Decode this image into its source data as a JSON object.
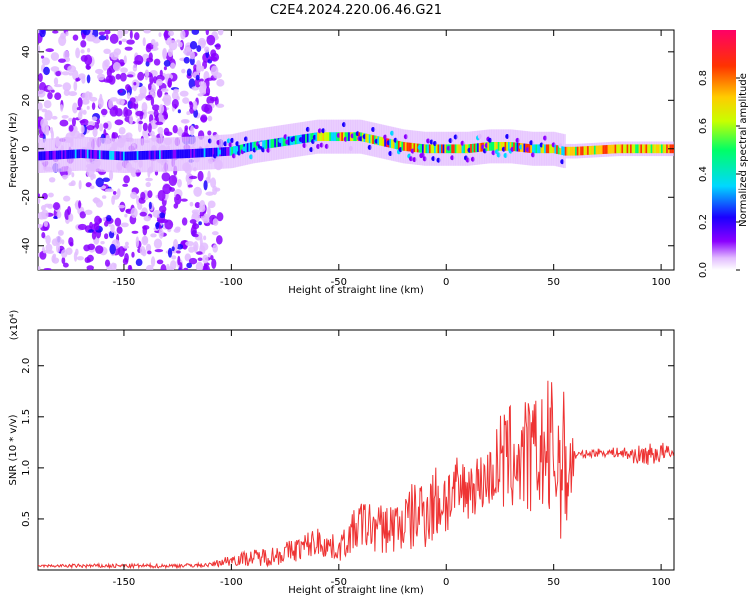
{
  "title": "C2E4.2024.220.06.46.G21",
  "chart_data": [
    {
      "type": "heatmap",
      "xlabel": "Height of straight line (km)",
      "ylabel": "Frequency (Hz)",
      "xlim": [
        -190,
        106
      ],
      "ylim": [
        -50,
        49
      ],
      "xticks": [
        -150,
        -100,
        -50,
        0,
        50,
        100
      ],
      "yticks": [
        -40,
        -20,
        0,
        20,
        40
      ],
      "colorbar": {
        "label": "Normalized spectral amplitude",
        "range": [
          0,
          1
        ],
        "ticks": [
          "0.0",
          "0.2",
          "0.4",
          "0.6",
          "0.8"
        ],
        "colors": [
          "#ffffff",
          "#e2bcff",
          "#8a00ff",
          "#1a00ff",
          "#00d8ff",
          "#00ff66",
          "#c8ff00",
          "#ffcc00",
          "#ff3300",
          "#ff0066"
        ]
      },
      "ridge": {
        "x": [
          -190,
          -170,
          -150,
          -120,
          -100,
          -90,
          -75,
          -60,
          -50,
          -40,
          -30,
          -20,
          -10,
          0,
          10,
          20,
          30,
          40,
          50,
          55,
          60,
          80,
          100,
          106
        ],
        "y": [
          -3,
          -2,
          -3,
          -2,
          -1,
          1,
          3,
          5,
          5,
          5,
          3,
          1,
          0,
          0,
          0,
          1,
          1,
          0,
          0,
          -1,
          -1,
          0,
          0,
          0
        ]
      },
      "scatter_region_x": [
        -190,
        -105
      ]
    },
    {
      "type": "line",
      "xlabel": "Height of straight line (km)",
      "ylabel": "SNR (10 * v/v)",
      "yscale_label": "(x10⁴)",
      "xlim": [
        -190,
        106
      ],
      "ylim": [
        0,
        2.35
      ],
      "xticks": [
        -150,
        -100,
        -50,
        0,
        50,
        100
      ],
      "yticks": [
        "0.5",
        "1.0",
        "1.5",
        "2.0"
      ],
      "line_color": "#ee3333",
      "x": [
        -190,
        -170,
        -150,
        -130,
        -110,
        -100,
        -90,
        -80,
        -70,
        -60,
        -50,
        -40,
        -30,
        -20,
        -10,
        0,
        10,
        20,
        25,
        30,
        40,
        45,
        50,
        55,
        58,
        60,
        70,
        80,
        90,
        100,
        106
      ],
      "y": [
        0.04,
        0.04,
        0.04,
        0.04,
        0.05,
        0.1,
        0.12,
        0.14,
        0.2,
        0.28,
        0.2,
        0.45,
        0.4,
        0.45,
        0.6,
        0.7,
        0.8,
        0.9,
        1.05,
        1.1,
        1.1,
        1.15,
        1.1,
        1.05,
        1.0,
        1.12,
        1.15,
        1.15,
        1.12,
        1.15,
        1.13
      ],
      "spread": [
        0.01,
        0.02,
        0.02,
        0.02,
        0.02,
        0.06,
        0.08,
        0.1,
        0.12,
        0.15,
        0.12,
        0.25,
        0.25,
        0.3,
        0.4,
        0.4,
        0.3,
        0.3,
        0.5,
        0.55,
        0.6,
        0.6,
        0.9,
        0.7,
        0.6,
        0.04,
        0.04,
        0.05,
        0.1,
        0.12,
        0.05
      ]
    }
  ]
}
